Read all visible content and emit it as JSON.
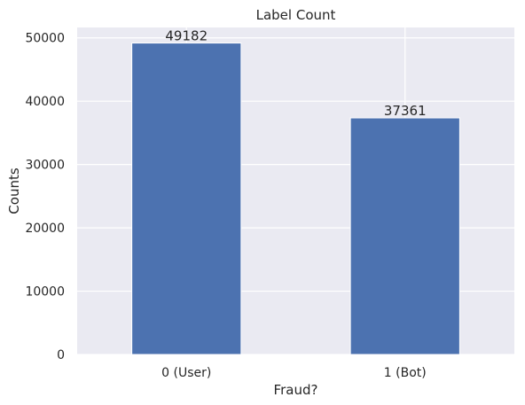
{
  "chart_data": {
    "type": "bar",
    "title": "Label Count",
    "xlabel": "Fraud?",
    "ylabel": "Counts",
    "categories": [
      "0 (User)",
      "1 (Bot)"
    ],
    "values": [
      49182,
      37361
    ],
    "data_labels": [
      "49182",
      "37361"
    ],
    "ylim": [
      0,
      51640
    ],
    "yticks": [
      0,
      10000,
      20000,
      30000,
      40000,
      50000
    ],
    "ytick_labels": [
      "0",
      "10000",
      "20000",
      "30000",
      "40000",
      "50000"
    ],
    "grid": true,
    "bar_color": "#4c72b0",
    "background_color": "#eaeaf2"
  }
}
